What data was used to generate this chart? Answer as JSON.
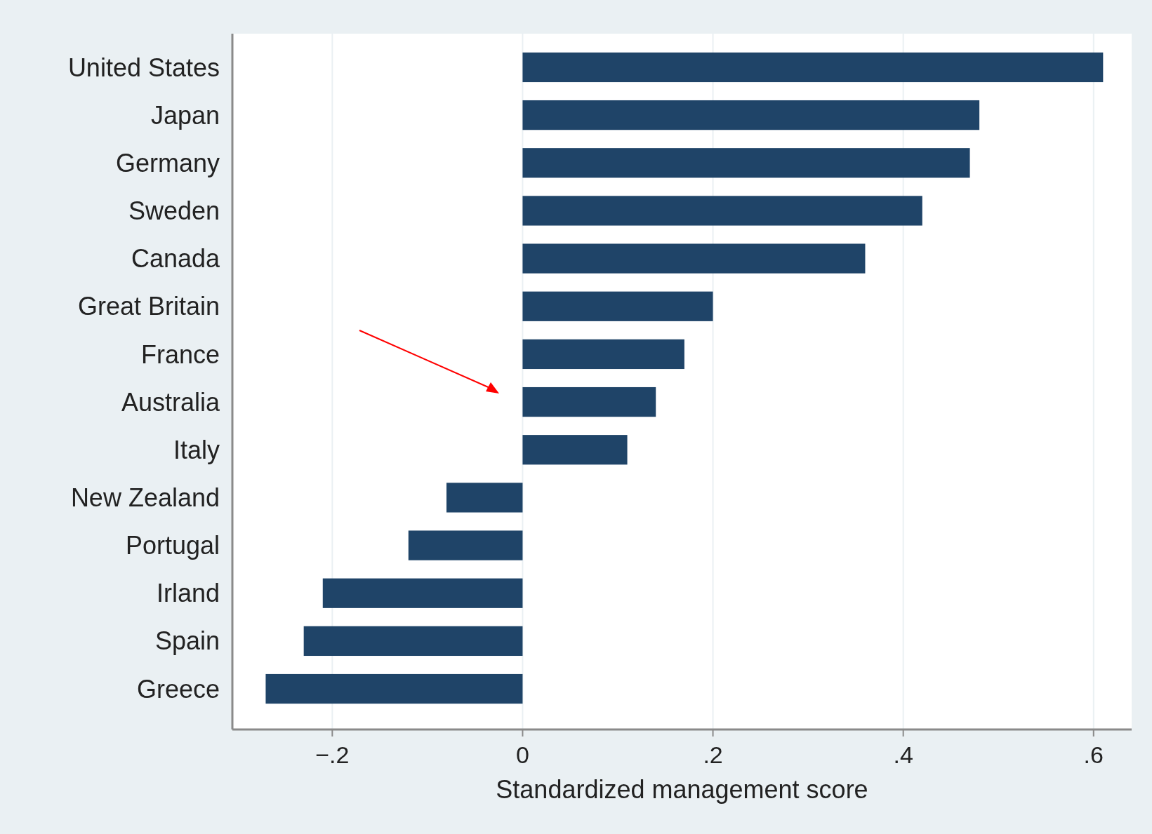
{
  "chart_data": {
    "type": "bar",
    "orientation": "horizontal",
    "xlabel": "Standardized management score",
    "categories": [
      "United States",
      "Japan",
      "Germany",
      "Sweden",
      "Canada",
      "Great Britain",
      "France",
      "Australia",
      "Italy",
      "New Zealand",
      "Portugal",
      "Irland",
      "Spain",
      "Greece"
    ],
    "values": [
      0.61,
      0.48,
      0.47,
      0.42,
      0.36,
      0.2,
      0.17,
      0.14,
      0.11,
      -0.08,
      -0.12,
      -0.21,
      -0.23,
      -0.27
    ],
    "color": "#1f4468",
    "xlim": [
      -0.305,
      0.64
    ],
    "xticks": [
      {
        "value": -0.2,
        "label": "−.2"
      },
      0,
      {
        "value": 0.2,
        "label": ".2"
      },
      {
        "value": 0.4,
        "label": ".4"
      },
      {
        "value": 0.6,
        "label": ".6"
      }
    ],
    "grid": "x"
  }
}
